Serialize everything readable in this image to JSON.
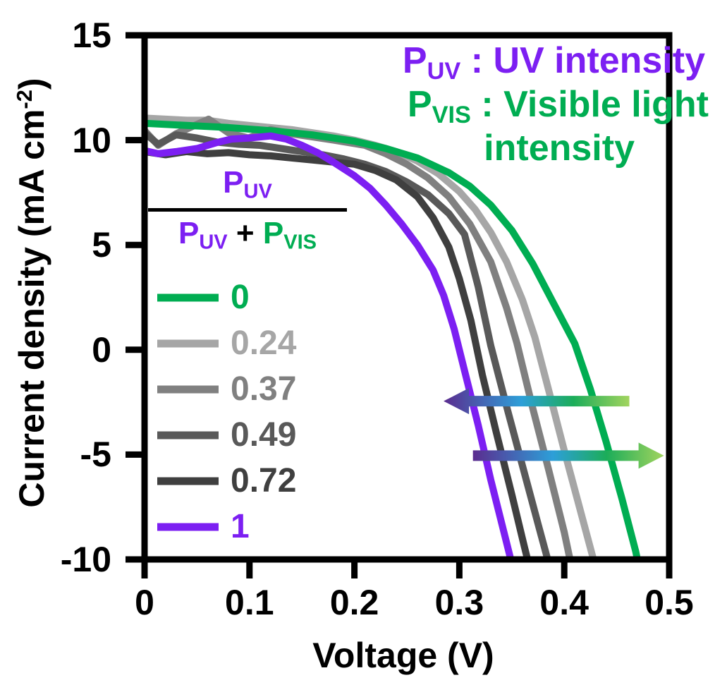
{
  "figure": {
    "background": "#ffffff"
  },
  "axes": {
    "xlabel": "Voltage (V)",
    "ylabel_main": "Current density (mA cm",
    "ylabel_sup": "-2",
    "ylabel_close": ")",
    "xticks": [
      {
        "v": 0,
        "label": "0"
      },
      {
        "v": 0.1,
        "label": "0.1"
      },
      {
        "v": 0.2,
        "label": "0.2"
      },
      {
        "v": 0.3,
        "label": "0.3"
      },
      {
        "v": 0.4,
        "label": "0.4"
      },
      {
        "v": 0.5,
        "label": "0.5"
      }
    ],
    "yticks": [
      {
        "v": 15,
        "label": "15"
      },
      {
        "v": 10,
        "label": "10"
      },
      {
        "v": 5,
        "label": "5"
      },
      {
        "v": 0,
        "label": "0"
      },
      {
        "v": -5,
        "label": "-5"
      },
      {
        "v": -10,
        "label": "-10"
      }
    ]
  },
  "annotation": {
    "line1": {
      "symbol": "P",
      "subscript": "UV",
      "rest": " : UV intensity",
      "color": "#7C1FF2"
    },
    "line2": {
      "symbol": "P",
      "subscript": "VIS",
      "rest": " : Visible light",
      "color": "#00AD52"
    },
    "line3": {
      "text": "intensity",
      "color": "#00AD52"
    }
  },
  "fraction": {
    "numerator": {
      "symbol": "P",
      "subscript": "UV",
      "color": "#7C1FF2"
    },
    "den1": {
      "symbol": "P",
      "subscript": "UV",
      "color": "#7C1FF2"
    },
    "plus": " + ",
    "plus_color": "#000000",
    "den2": {
      "symbol": "P",
      "subscript": "VIS",
      "color": "#00AD52"
    },
    "bar_color": "#000000"
  },
  "chart_data": {
    "type": "line",
    "title": "",
    "xlabel": "Voltage (V)",
    "ylabel": "Current density (mA cm^-2)",
    "xlim": [
      0,
      0.5
    ],
    "ylim": [
      -10,
      15
    ],
    "xticks": [
      0,
      0.1,
      0.2,
      0.3,
      0.4,
      0.5
    ],
    "yticks": [
      -10,
      -5,
      0,
      5,
      10,
      15
    ],
    "grid": false,
    "legend_position": "center-left",
    "legend_title": "P_UV / (P_UV + P_VIS)",
    "series": [
      {
        "name": "0",
        "color": "#00AD52",
        "points": [
          [
            0,
            10.8
          ],
          [
            0.04,
            10.7
          ],
          [
            0.08,
            10.6
          ],
          [
            0.12,
            10.45
          ],
          [
            0.16,
            10.25
          ],
          [
            0.2,
            9.95
          ],
          [
            0.23,
            9.6
          ],
          [
            0.26,
            9.15
          ],
          [
            0.29,
            8.45
          ],
          [
            0.31,
            7.8
          ],
          [
            0.33,
            6.9
          ],
          [
            0.35,
            5.7
          ],
          [
            0.37,
            4.1
          ],
          [
            0.39,
            2.2
          ],
          [
            0.41,
            0.3
          ],
          [
            0.425,
            -1.9
          ],
          [
            0.44,
            -4.4
          ],
          [
            0.455,
            -7.1
          ],
          [
            0.468,
            -9.6
          ],
          [
            0.474,
            -11
          ]
        ]
      },
      {
        "name": "0.24",
        "color": "#A6A6A6",
        "points": [
          [
            0,
            11.05
          ],
          [
            0.02,
            11.0
          ],
          [
            0.04,
            10.95
          ],
          [
            0.06,
            10.95
          ],
          [
            0.08,
            10.8
          ],
          [
            0.1,
            10.7
          ],
          [
            0.12,
            10.6
          ],
          [
            0.14,
            10.5
          ],
          [
            0.16,
            10.35
          ],
          [
            0.18,
            10.2
          ],
          [
            0.2,
            10.0
          ],
          [
            0.22,
            9.75
          ],
          [
            0.24,
            9.45
          ],
          [
            0.26,
            9.0
          ],
          [
            0.28,
            8.4
          ],
          [
            0.3,
            7.55
          ],
          [
            0.315,
            6.7
          ],
          [
            0.33,
            5.6
          ],
          [
            0.345,
            4.2
          ],
          [
            0.36,
            2.4
          ],
          [
            0.372,
            0.6
          ],
          [
            0.385,
            -1.9
          ],
          [
            0.4,
            -4.8
          ],
          [
            0.415,
            -7.6
          ],
          [
            0.43,
            -10.4
          ],
          [
            0.433,
            -11
          ]
        ]
      },
      {
        "name": "0.37",
        "color": "#808080",
        "points": [
          [
            0,
            10.45
          ],
          [
            0.013,
            9.75
          ],
          [
            0.03,
            10.3
          ],
          [
            0.061,
            11.0
          ],
          [
            0.08,
            10.35
          ],
          [
            0.099,
            10.1
          ],
          [
            0.12,
            10.5
          ],
          [
            0.14,
            10.3
          ],
          [
            0.16,
            10.15
          ],
          [
            0.18,
            10.0
          ],
          [
            0.21,
            9.75
          ],
          [
            0.23,
            9.35
          ],
          [
            0.25,
            8.85
          ],
          [
            0.27,
            8.2
          ],
          [
            0.29,
            7.3
          ],
          [
            0.31,
            6.0
          ],
          [
            0.33,
            4.2
          ],
          [
            0.345,
            2.0
          ],
          [
            0.355,
            0.3
          ],
          [
            0.37,
            -2.8
          ],
          [
            0.385,
            -5.7
          ],
          [
            0.4,
            -8.7
          ],
          [
            0.408,
            -10.6
          ],
          [
            0.411,
            -11
          ]
        ]
      },
      {
        "name": "0.49",
        "color": "#595959",
        "points": [
          [
            0,
            10.35
          ],
          [
            0.013,
            9.8
          ],
          [
            0.03,
            10.25
          ],
          [
            0.05,
            10.1
          ],
          [
            0.07,
            9.9
          ],
          [
            0.09,
            9.8
          ],
          [
            0.11,
            9.75
          ],
          [
            0.13,
            9.6
          ],
          [
            0.15,
            9.45
          ],
          [
            0.17,
            9.3
          ],
          [
            0.19,
            9.1
          ],
          [
            0.21,
            8.85
          ],
          [
            0.23,
            8.5
          ],
          [
            0.25,
            8.0
          ],
          [
            0.27,
            7.4
          ],
          [
            0.29,
            6.5
          ],
          [
            0.305,
            5.5
          ],
          [
            0.318,
            3.0
          ],
          [
            0.33,
            0.2
          ],
          [
            0.345,
            -2.7
          ],
          [
            0.36,
            -5.5
          ],
          [
            0.375,
            -8.3
          ],
          [
            0.388,
            -10.7
          ],
          [
            0.391,
            -11
          ]
        ]
      },
      {
        "name": "0.72",
        "color": "#3F3F3F",
        "points": [
          [
            0,
            9.45
          ],
          [
            0.02,
            9.3
          ],
          [
            0.04,
            9.45
          ],
          [
            0.06,
            9.35
          ],
          [
            0.08,
            9.4
          ],
          [
            0.1,
            9.3
          ],
          [
            0.12,
            9.25
          ],
          [
            0.14,
            9.15
          ],
          [
            0.16,
            9.05
          ],
          [
            0.18,
            8.95
          ],
          [
            0.2,
            8.85
          ],
          [
            0.22,
            8.55
          ],
          [
            0.24,
            8.1
          ],
          [
            0.26,
            7.3
          ],
          [
            0.275,
            6.3
          ],
          [
            0.29,
            4.9
          ],
          [
            0.3,
            3.4
          ],
          [
            0.311,
            1.4
          ],
          [
            0.322,
            -1.2
          ],
          [
            0.335,
            -3.9
          ],
          [
            0.35,
            -6.9
          ],
          [
            0.362,
            -9.4
          ],
          [
            0.37,
            -11
          ]
        ]
      },
      {
        "name": "1",
        "color": "#7C1FF2",
        "points": [
          [
            0,
            9.5
          ],
          [
            0.013,
            9.35
          ],
          [
            0.03,
            9.45
          ],
          [
            0.05,
            9.6
          ],
          [
            0.07,
            9.9
          ],
          [
            0.083,
            10.05
          ],
          [
            0.1,
            10.1
          ],
          [
            0.12,
            10.2
          ],
          [
            0.135,
            10.05
          ],
          [
            0.15,
            9.75
          ],
          [
            0.165,
            9.4
          ],
          [
            0.18,
            8.95
          ],
          [
            0.2,
            8.3
          ],
          [
            0.215,
            7.7
          ],
          [
            0.23,
            6.9
          ],
          [
            0.245,
            6.0
          ],
          [
            0.26,
            5.0
          ],
          [
            0.275,
            3.8
          ],
          [
            0.285,
            2.6
          ],
          [
            0.295,
            1.0
          ],
          [
            0.305,
            -1.0
          ],
          [
            0.318,
            -3.6
          ],
          [
            0.33,
            -6.2
          ],
          [
            0.343,
            -8.8
          ],
          [
            0.352,
            -10.6
          ],
          [
            0.355,
            -11
          ]
        ]
      }
    ],
    "arrows": [
      {
        "direction": "left",
        "tip_v": 0.285,
        "tail_v": 0.462,
        "j": -2.45,
        "gradient": [
          "#5B2C8F",
          "#2D9FD8",
          "#1CAD59",
          "#A2D45E"
        ]
      },
      {
        "direction": "right",
        "tip_v": 0.495,
        "tail_v": 0.313,
        "j": -5.05,
        "gradient": [
          "#5B2C8F",
          "#2D9FD8",
          "#1CAD59",
          "#A2D45E"
        ]
      }
    ],
    "frame_color": "#000000"
  }
}
